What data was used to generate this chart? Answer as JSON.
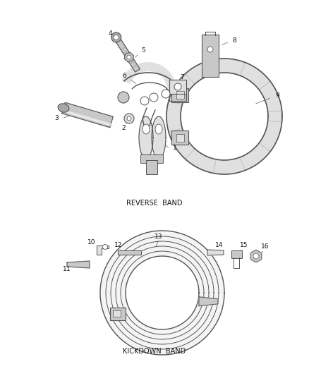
{
  "background_color": "#ffffff",
  "fig_width": 4.38,
  "fig_height": 5.33,
  "dpi": 100,
  "section1_label": "REVERSE  BAND",
  "section2_label": "KICKDOWN  BAND",
  "line_color": "#555555",
  "fill_light": "#e0e0e0",
  "fill_mid": "#c8c8c8",
  "fill_dark": "#a8a8a8",
  "label_fontsize": 7.0,
  "num_fontsize": 6.5
}
